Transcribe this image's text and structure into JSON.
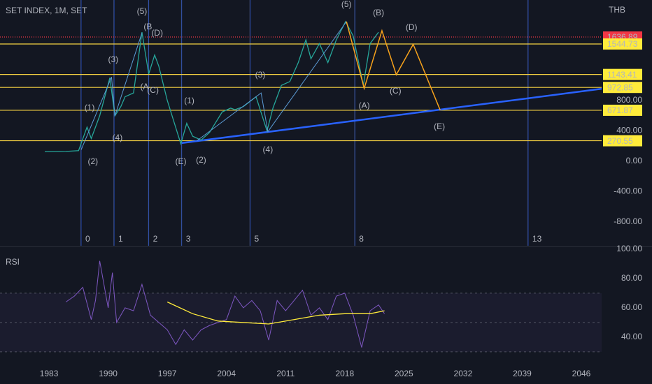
{
  "chart_data": [
    {
      "type": "line",
      "title": "SET INDEX, 1M, SET",
      "unit": "THB",
      "xlim": [
        1977.2,
        2048.4
      ],
      "ylim": [
        -1112.6,
        2124.1
      ],
      "xticks": [
        1983,
        1990,
        1997,
        2004,
        2011,
        2018,
        2025,
        2032,
        2039,
        2046
      ],
      "yticks": [
        {
          "value": 800,
          "label": "800.00"
        },
        {
          "value": 400,
          "label": "400.00"
        },
        {
          "value": 0,
          "label": "0.00"
        },
        {
          "value": -400,
          "label": "-400.00"
        },
        {
          "value": -800,
          "label": "-800.00"
        }
      ],
      "series": [
        {
          "color": "#26a69a",
          "x": [
            1982.5,
            1985,
            1986.5,
            1987.5,
            1988,
            1989,
            1990.2,
            1990.8,
            1991.5,
            1992,
            1993,
            1994,
            1994.8,
            1995.5,
            1996,
            1997,
            1998.6,
            1999.3,
            2000,
            2001,
            2002,
            2003.5,
            2004.5,
            2005,
            2006,
            2007.5,
            2008.8,
            2009.5,
            2010.5,
            2011.5,
            2012.5,
            2013.4,
            2014,
            2015,
            2016,
            2017,
            2018.1,
            2019,
            2020.2,
            2021,
            2022
          ],
          "values": [
            125,
            130,
            140,
            450,
            300,
            600,
            1100,
            600,
            720,
            850,
            900,
            1700,
            1150,
            1400,
            1250,
            800,
            230,
            500,
            330,
            280,
            380,
            650,
            700,
            680,
            720,
            850,
            400,
            700,
            1000,
            1050,
            1300,
            1600,
            1350,
            1550,
            1300,
            1600,
            1840,
            1650,
            1000,
            1550,
            1700
          ]
        },
        {
          "color": "#f7a21b",
          "x": [
            2018.2,
            2020.3,
            2022.4,
            2024.1,
            2026.1,
            2029.3
          ],
          "values": [
            1840,
            960,
            1720,
            1140,
            1540,
            672
          ]
        },
        {
          "color": "#5b9bd5",
          "x": [
            1986.8,
            1990.4,
            1990.8,
            1994,
            null,
            2000.5,
            2008.1,
            2008.9,
            2018.2
          ],
          "values": [
            150,
            1110,
            600,
            1690,
            null,
            270,
            900,
            390,
            1840
          ]
        },
        {
          "color": "#2962ff",
          "x": [
            1998.7,
            2048.4
          ],
          "values": [
            240,
            955
          ]
        }
      ],
      "levels": [
        1636.89,
        1544.73,
        1143.41,
        972.85,
        671.87,
        270.55
      ],
      "level_colors": [
        "#f23645",
        "#ffeb3b",
        "#ffeb3b",
        "#ffeb3b",
        "#ffeb3b",
        "#ffeb3b"
      ],
      "time_lines": {
        "x": [
          1986.8,
          1990.7,
          1994.8,
          1998.7,
          2006.8,
          2019.2,
          2039.7
        ],
        "labels": [
          "0",
          "1",
          "2",
          "3",
          "5",
          "8",
          "13"
        ]
      },
      "annotations": [
        {
          "text": "(5)",
          "x": 1994.0,
          "y": 1968,
          "color": "#5b9bd5"
        },
        {
          "text": "(3)",
          "x": 1990.6,
          "y": 1333,
          "color": "#5b9bd5"
        },
        {
          "text": "(1)",
          "x": 1987.8,
          "y": 699,
          "color": "#5b9bd5"
        },
        {
          "text": "(2)",
          "x": 1988.2,
          "y": -9,
          "color": "#5b9bd5"
        },
        {
          "text": "(4)",
          "x": 1991.1,
          "y": 303,
          "color": "#5b9bd5"
        },
        {
          "text": "(1)",
          "x": 1999.6,
          "y": 791,
          "color": "#5b9bd5"
        },
        {
          "text": "(2)",
          "x": 2001.0,
          "y": 9,
          "color": "#5b9bd5"
        },
        {
          "text": "(3)",
          "x": 2008.0,
          "y": 1131,
          "color": "#5b9bd5"
        },
        {
          "text": "(4)",
          "x": 2008.9,
          "y": 147,
          "color": "#5b9bd5"
        },
        {
          "text": "(5)",
          "x": 2018.2,
          "y": 2060,
          "color": "#5b9bd5"
        },
        {
          "text": "(B",
          "x": 1994.7,
          "y": 1766,
          "color": "#f7a21b"
        },
        {
          "text": "(D)",
          "x": 1995.8,
          "y": 1683,
          "color": "#f7a21b"
        },
        {
          "text": "(A",
          "x": 1994.3,
          "y": 975,
          "color": "#f7a21b"
        },
        {
          "text": "(C)",
          "x": 1995.3,
          "y": 929,
          "color": "#f7a21b"
        },
        {
          "text": "(E)",
          "x": 1998.6,
          "y": -9,
          "color": "#f7a21b"
        },
        {
          "text": "(B)",
          "x": 2022.0,
          "y": 1949,
          "color": "#f7a21b"
        },
        {
          "text": "(D)",
          "x": 2025.9,
          "y": 1756,
          "color": "#f7a21b"
        },
        {
          "text": "(C)",
          "x": 2024.0,
          "y": 920,
          "color": "#f7a21b"
        },
        {
          "text": "(A)",
          "x": 2020.3,
          "y": 726,
          "color": "#f7a21b"
        },
        {
          "text": "(E)",
          "x": 2029.2,
          "y": 451,
          "color": "#f7a21b"
        }
      ]
    },
    {
      "type": "line",
      "title": "RSI",
      "xlim": [
        1977.2,
        2048.4
      ],
      "ylim": [
        21.4,
        100.9
      ],
      "yticks": [
        {
          "value": 100,
          "label": "100.00"
        },
        {
          "value": 80,
          "label": "80.00"
        },
        {
          "value": 60,
          "label": "60.00"
        },
        {
          "value": 40,
          "label": "40.00"
        }
      ],
      "bands": [
        70,
        50,
        30
      ],
      "series": [
        {
          "color": "#7e57c2",
          "x": [
            1985,
            1986,
            1987,
            1988,
            1988.5,
            1989,
            1990,
            1990.5,
            1991,
            1992,
            1993,
            1994,
            1995,
            1996,
            1997,
            1998,
            1999,
            2000,
            2001,
            2002,
            2004,
            2005,
            2006,
            2007,
            2008,
            2009,
            2010,
            2011,
            2012,
            2013,
            2014,
            2015,
            2016,
            2017,
            2018,
            2019,
            2020,
            2021,
            2022,
            2022.7
          ],
          "values": [
            64,
            68,
            74,
            52,
            65,
            92,
            60,
            84,
            50,
            60,
            58,
            76,
            55,
            50,
            45,
            35,
            45,
            38,
            45,
            48,
            52,
            68,
            60,
            65,
            58,
            38,
            65,
            58,
            65,
            72,
            55,
            60,
            52,
            68,
            70,
            55,
            33,
            58,
            62,
            56
          ]
        },
        {
          "color": "#ffeb3b",
          "x": [
            1997,
            2000,
            2003,
            2006,
            2009,
            2012,
            2015,
            2018,
            2021,
            2022.7
          ],
          "values": [
            64,
            56,
            51,
            50,
            49,
            52,
            55,
            56,
            56,
            58
          ]
        }
      ]
    }
  ]
}
